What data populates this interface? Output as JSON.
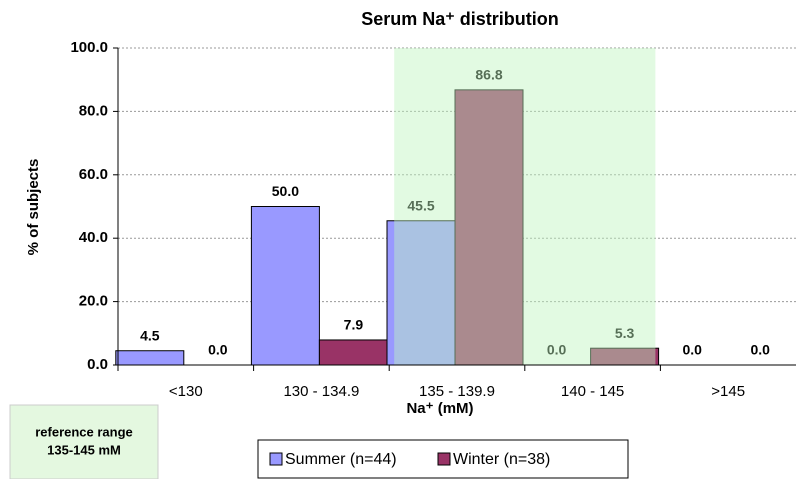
{
  "chart_data": {
    "type": "bar",
    "title": "Serum Na⁺ distribution",
    "x_label": "Na⁺ (mM)",
    "y_label": "% of subjects",
    "categories": [
      "<130",
      "130 - 134.9",
      "135 - 139.9",
      "140 - 145",
      ">145"
    ],
    "series": [
      {
        "name": "Summer (n=44)",
        "color": "#9999ff",
        "values": [
          4.5,
          50.0,
          45.5,
          0.0,
          0.0
        ],
        "value_labels": [
          "4.5",
          "50.0",
          "45.5",
          "0.0",
          "0.0"
        ]
      },
      {
        "name": "Winter (n=38)",
        "color": "#993366",
        "values": [
          0.0,
          7.9,
          86.8,
          5.3,
          0.0
        ],
        "value_labels": [
          "0.0",
          "7.9",
          "86.8",
          "5.3",
          "0.0"
        ]
      }
    ],
    "ylim": [
      0,
      100
    ],
    "yticks": [
      {
        "value": 0,
        "label": "0.0"
      },
      {
        "value": 20,
        "label": "20.0"
      },
      {
        "value": 40,
        "label": "40.0"
      },
      {
        "value": 60,
        "label": "60.0"
      },
      {
        "value": 80,
        "label": "80.0"
      },
      {
        "value": 100,
        "label": "100.0"
      }
    ],
    "grid": true,
    "annotation": [
      "reference range",
      "135-145 mM"
    ]
  }
}
